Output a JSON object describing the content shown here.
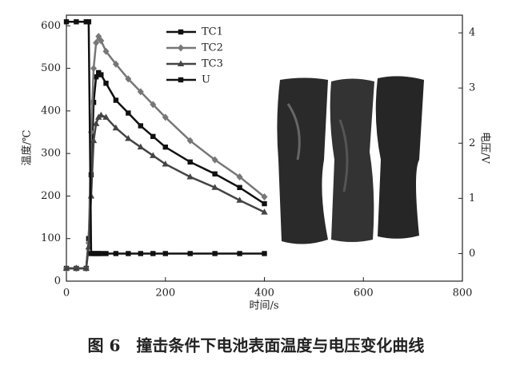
{
  "chart_data": {
    "type": "line",
    "caption": "图 6　撞击条件下电池表面温度与电压变化曲线",
    "xlabel": "时间/s",
    "ylabel": "温度/℃",
    "y2label": "电压/V",
    "x": [
      0,
      20,
      40,
      45,
      50,
      55,
      60,
      65,
      70,
      80,
      100,
      125,
      150,
      175,
      200,
      250,
      300,
      350,
      400
    ],
    "series": [
      {
        "name": "TC1",
        "color": "#111111",
        "marker": "square",
        "values": [
          30,
          30,
          30,
          100,
          250,
          420,
          480,
          490,
          485,
          465,
          425,
          395,
          365,
          340,
          315,
          280,
          252,
          220,
          182
        ]
      },
      {
        "name": "TC2",
        "color": "#777777",
        "marker": "diamond",
        "values": [
          30,
          30,
          30,
          90,
          350,
          500,
          560,
          575,
          565,
          540,
          510,
          475,
          445,
          415,
          385,
          330,
          285,
          245,
          198
        ]
      },
      {
        "name": "TC3",
        "color": "#444444",
        "marker": "triangle",
        "values": [
          30,
          30,
          30,
          80,
          200,
          330,
          370,
          385,
          390,
          385,
          360,
          335,
          315,
          295,
          275,
          245,
          220,
          190,
          162
        ]
      },
      {
        "name": "U",
        "color": "#111111",
        "marker": "square",
        "axis": "y2",
        "values": [
          4.2,
          4.2,
          4.2,
          4.2,
          0,
          0,
          0,
          0,
          0,
          0,
          0,
          0,
          0,
          0,
          0,
          0,
          0,
          0,
          0
        ]
      }
    ],
    "xlim": [
      0,
      800
    ],
    "xticks": [
      0,
      200,
      400,
      600,
      800
    ],
    "ylim": [
      0,
      625
    ],
    "yticks": [
      0,
      100,
      200,
      300,
      400,
      500,
      600
    ],
    "y2lim": [
      -0.5,
      4.32
    ],
    "y2ticks": [
      0,
      1,
      2,
      3,
      4
    ]
  }
}
